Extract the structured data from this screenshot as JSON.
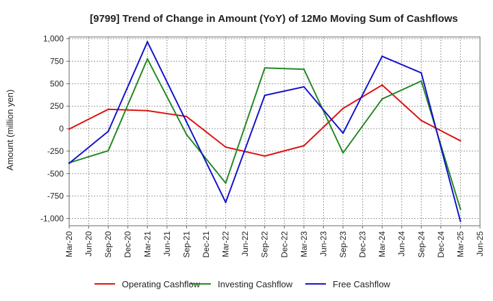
{
  "chart_data": {
    "type": "line",
    "title": "[9799]  Trend of Change in Amount (YoY) of 12Mo Moving Sum of Cashflows",
    "ylabel": "Amount (million yen)",
    "xlabel": "",
    "ylim": [
      -1080,
      1020
    ],
    "yticks": [
      -1000,
      -750,
      -500,
      -250,
      0,
      250,
      500,
      750,
      1000
    ],
    "ytick_labels": [
      "-1,000",
      "-750",
      "-500",
      "-250",
      "0",
      "250",
      "500",
      "750",
      "1,000"
    ],
    "categories": [
      "Mar-20",
      "Jun-20",
      "Sep-20",
      "Dec-20",
      "Mar-21",
      "Jun-21",
      "Sep-21",
      "Dec-21",
      "Mar-22",
      "Jun-22",
      "Sep-22",
      "Dec-22",
      "Mar-23",
      "Jun-23",
      "Sep-23",
      "Dec-23",
      "Mar-24",
      "Jun-24",
      "Sep-24",
      "Dec-24",
      "Mar-25",
      "Jun-25"
    ],
    "series": [
      {
        "name": "Operating Cashflow",
        "color": "#dd1111",
        "points": [
          [
            "Mar-20",
            -5
          ],
          [
            "Sep-20",
            215
          ],
          [
            "Mar-21",
            200
          ],
          [
            "Sep-21",
            135
          ],
          [
            "Mar-22",
            -205
          ],
          [
            "Sep-22",
            -305
          ],
          [
            "Mar-23",
            -190
          ],
          [
            "Sep-23",
            225
          ],
          [
            "Mar-24",
            485
          ],
          [
            "Sep-24",
            90
          ],
          [
            "Mar-25",
            -135
          ]
        ]
      },
      {
        "name": "Investing Cashflow",
        "color": "#228822",
        "points": [
          [
            "Mar-20",
            -380
          ],
          [
            "Sep-20",
            -245
          ],
          [
            "Mar-21",
            775
          ],
          [
            "Sep-21",
            -65
          ],
          [
            "Mar-22",
            -605
          ],
          [
            "Sep-22",
            675
          ],
          [
            "Mar-23",
            660
          ],
          [
            "Sep-23",
            -270
          ],
          [
            "Mar-24",
            330
          ],
          [
            "Sep-24",
            530
          ],
          [
            "Mar-25",
            -895
          ]
        ]
      },
      {
        "name": "Free Cashflow",
        "color": "#1111cc",
        "points": [
          [
            "Mar-20",
            -385
          ],
          [
            "Sep-20",
            -30
          ],
          [
            "Mar-21",
            965
          ],
          [
            "Sep-21",
            75
          ],
          [
            "Mar-22",
            -820
          ],
          [
            "Sep-22",
            370
          ],
          [
            "Mar-23",
            465
          ],
          [
            "Sep-23",
            -50
          ],
          [
            "Mar-24",
            805
          ],
          [
            "Sep-24",
            620
          ],
          [
            "Mar-25",
            -1030
          ]
        ]
      }
    ],
    "legend_position": "bottom",
    "grid": true
  }
}
